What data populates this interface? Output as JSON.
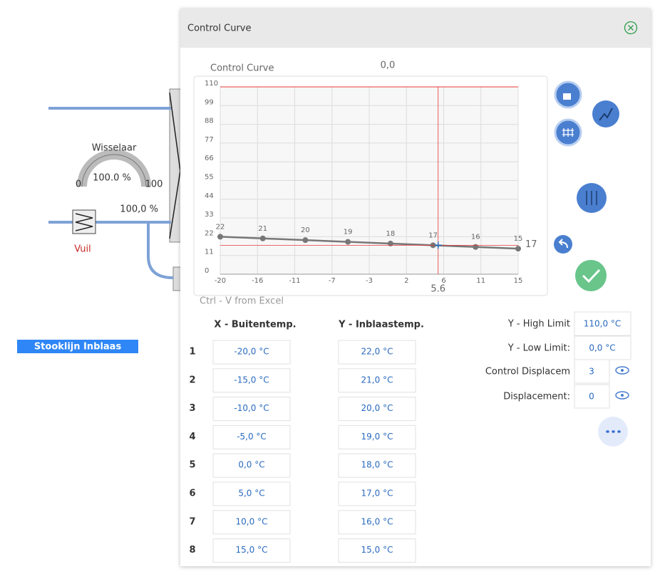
{
  "left_panel": {
    "gauge_title": "Wisselaar",
    "gauge_value": "100.0 %",
    "gauge_min": "0",
    "gauge_max": "100",
    "valve_value": "100,0 %",
    "filter_label": "Vuil",
    "button": "Stooklijn Inblaas"
  },
  "dialog": {
    "title": "Control Curve",
    "paste_hint": "Ctrl - V from Excel"
  },
  "chart_data": {
    "type": "line",
    "title": "Control Curve",
    "readout": "0,0",
    "x": [
      -20,
      -15,
      -10,
      -5,
      0,
      5,
      10,
      15
    ],
    "series": [
      {
        "color": "#777777",
        "values": [
          22,
          21,
          20,
          19,
          18,
          17,
          16,
          15
        ]
      }
    ],
    "xlim": [
      -20,
      15
    ],
    "ylim": [
      0,
      110
    ],
    "xticks": [
      -20,
      {
        "value": -15.625,
        "label": "-16"
      },
      {
        "value": -11.25,
        "label": "-11"
      },
      {
        "value": -6.875,
        "label": "-7"
      },
      {
        "value": -2.5,
        "label": "-3"
      },
      {
        "value": 1.875,
        "label": "2"
      },
      {
        "value": 6.25,
        "label": "6"
      },
      {
        "value": 10.625,
        "label": "11"
      },
      15
    ],
    "yticks": [
      0,
      11,
      22,
      33,
      44,
      55,
      66,
      77,
      88,
      99,
      110
    ],
    "grid": true,
    "cursor": {
      "x": 5.6,
      "y": 17,
      "color": "#e53935"
    }
  },
  "table": {
    "headers": [
      "X - Buitentemp.",
      "Y - Inblaastemp."
    ],
    "rows": [
      [
        "1",
        "-20,0 °C",
        "22,0 °C"
      ],
      [
        "2",
        "-15,0 °C",
        "21,0 °C"
      ],
      [
        "3",
        "-10,0 °C",
        "20,0 °C"
      ],
      [
        "4",
        "-5,0 °C",
        "19,0 °C"
      ],
      [
        "5",
        "0,0 °C",
        "18,0 °C"
      ],
      [
        "6",
        "5,0 °C",
        "17,0 °C"
      ],
      [
        "7",
        "10,0 °C",
        "16,0 °C"
      ],
      [
        "8",
        "15,0 °C",
        "15,0 °C"
      ]
    ]
  },
  "settings": {
    "rows": [
      {
        "label": "Y - High Limit",
        "value": "110,0 °C"
      },
      {
        "label": "Y - Low Limit:",
        "value": "0,0 °C"
      },
      {
        "label": "Control Displacem",
        "value": "3"
      },
      {
        "label": "Displacement:",
        "value": "0"
      }
    ]
  }
}
